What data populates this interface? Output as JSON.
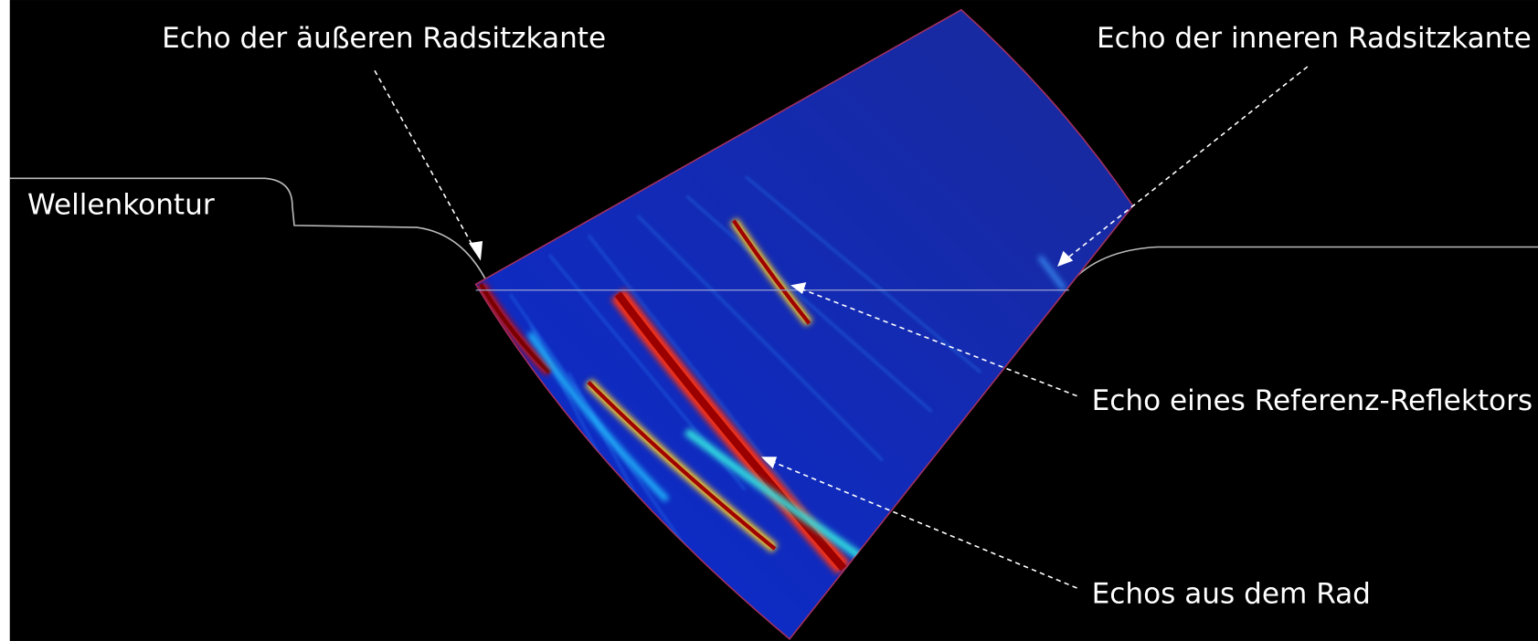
{
  "labels": {
    "outer_seat_echo": "Echo der äußeren Radsitzkante",
    "inner_seat_echo": "Echo der inneren Radsitzkante",
    "shaft_contour": "Wellenkontur",
    "reference_echo": "Echo eines Referenz-Reflektors",
    "wheel_echoes": "Echos aus dem Rad"
  }
}
